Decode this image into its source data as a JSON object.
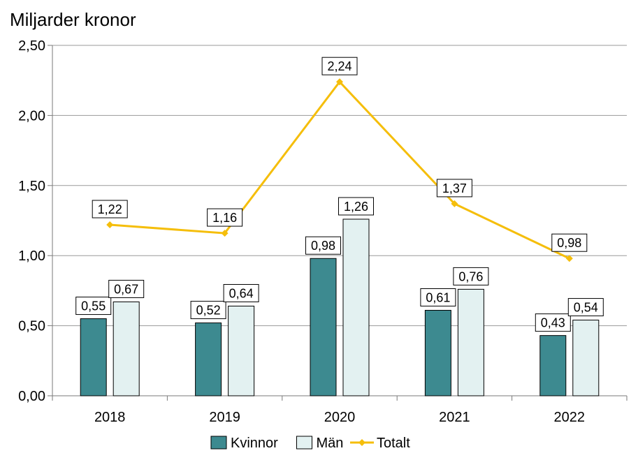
{
  "chart_data": {
    "type": "bar",
    "ylabel": "Miljarder kronor",
    "categories": [
      "2018",
      "2019",
      "2020",
      "2021",
      "2022"
    ],
    "ylim": [
      0,
      2.5
    ],
    "yticks": [
      0,
      0.5,
      1.0,
      1.5,
      2.0,
      2.5
    ],
    "ytick_labels": [
      "0,00",
      "0,50",
      "1,00",
      "1,50",
      "2,00",
      "2,50"
    ],
    "grid": true,
    "legend_position": "bottom",
    "series": [
      {
        "name": "Kvinnor",
        "kind": "bar",
        "color": "#3D8A90",
        "values": [
          0.55,
          0.52,
          0.98,
          0.61,
          0.43
        ],
        "labels": [
          "0,55",
          "0,52",
          "0,98",
          "0,61",
          "0,43"
        ]
      },
      {
        "name": "Män",
        "kind": "bar",
        "color": "#E3F1F1",
        "values": [
          0.67,
          0.64,
          1.26,
          0.76,
          0.54
        ],
        "labels": [
          "0,67",
          "0,64",
          "1,26",
          "0,76",
          "0,54"
        ]
      },
      {
        "name": "Totalt",
        "kind": "line",
        "color": "#F5BE0B",
        "values": [
          1.22,
          1.16,
          2.24,
          1.37,
          0.98
        ],
        "labels": [
          "1,22",
          "1,16",
          "2,24",
          "1,37",
          "0,98"
        ]
      }
    ]
  }
}
